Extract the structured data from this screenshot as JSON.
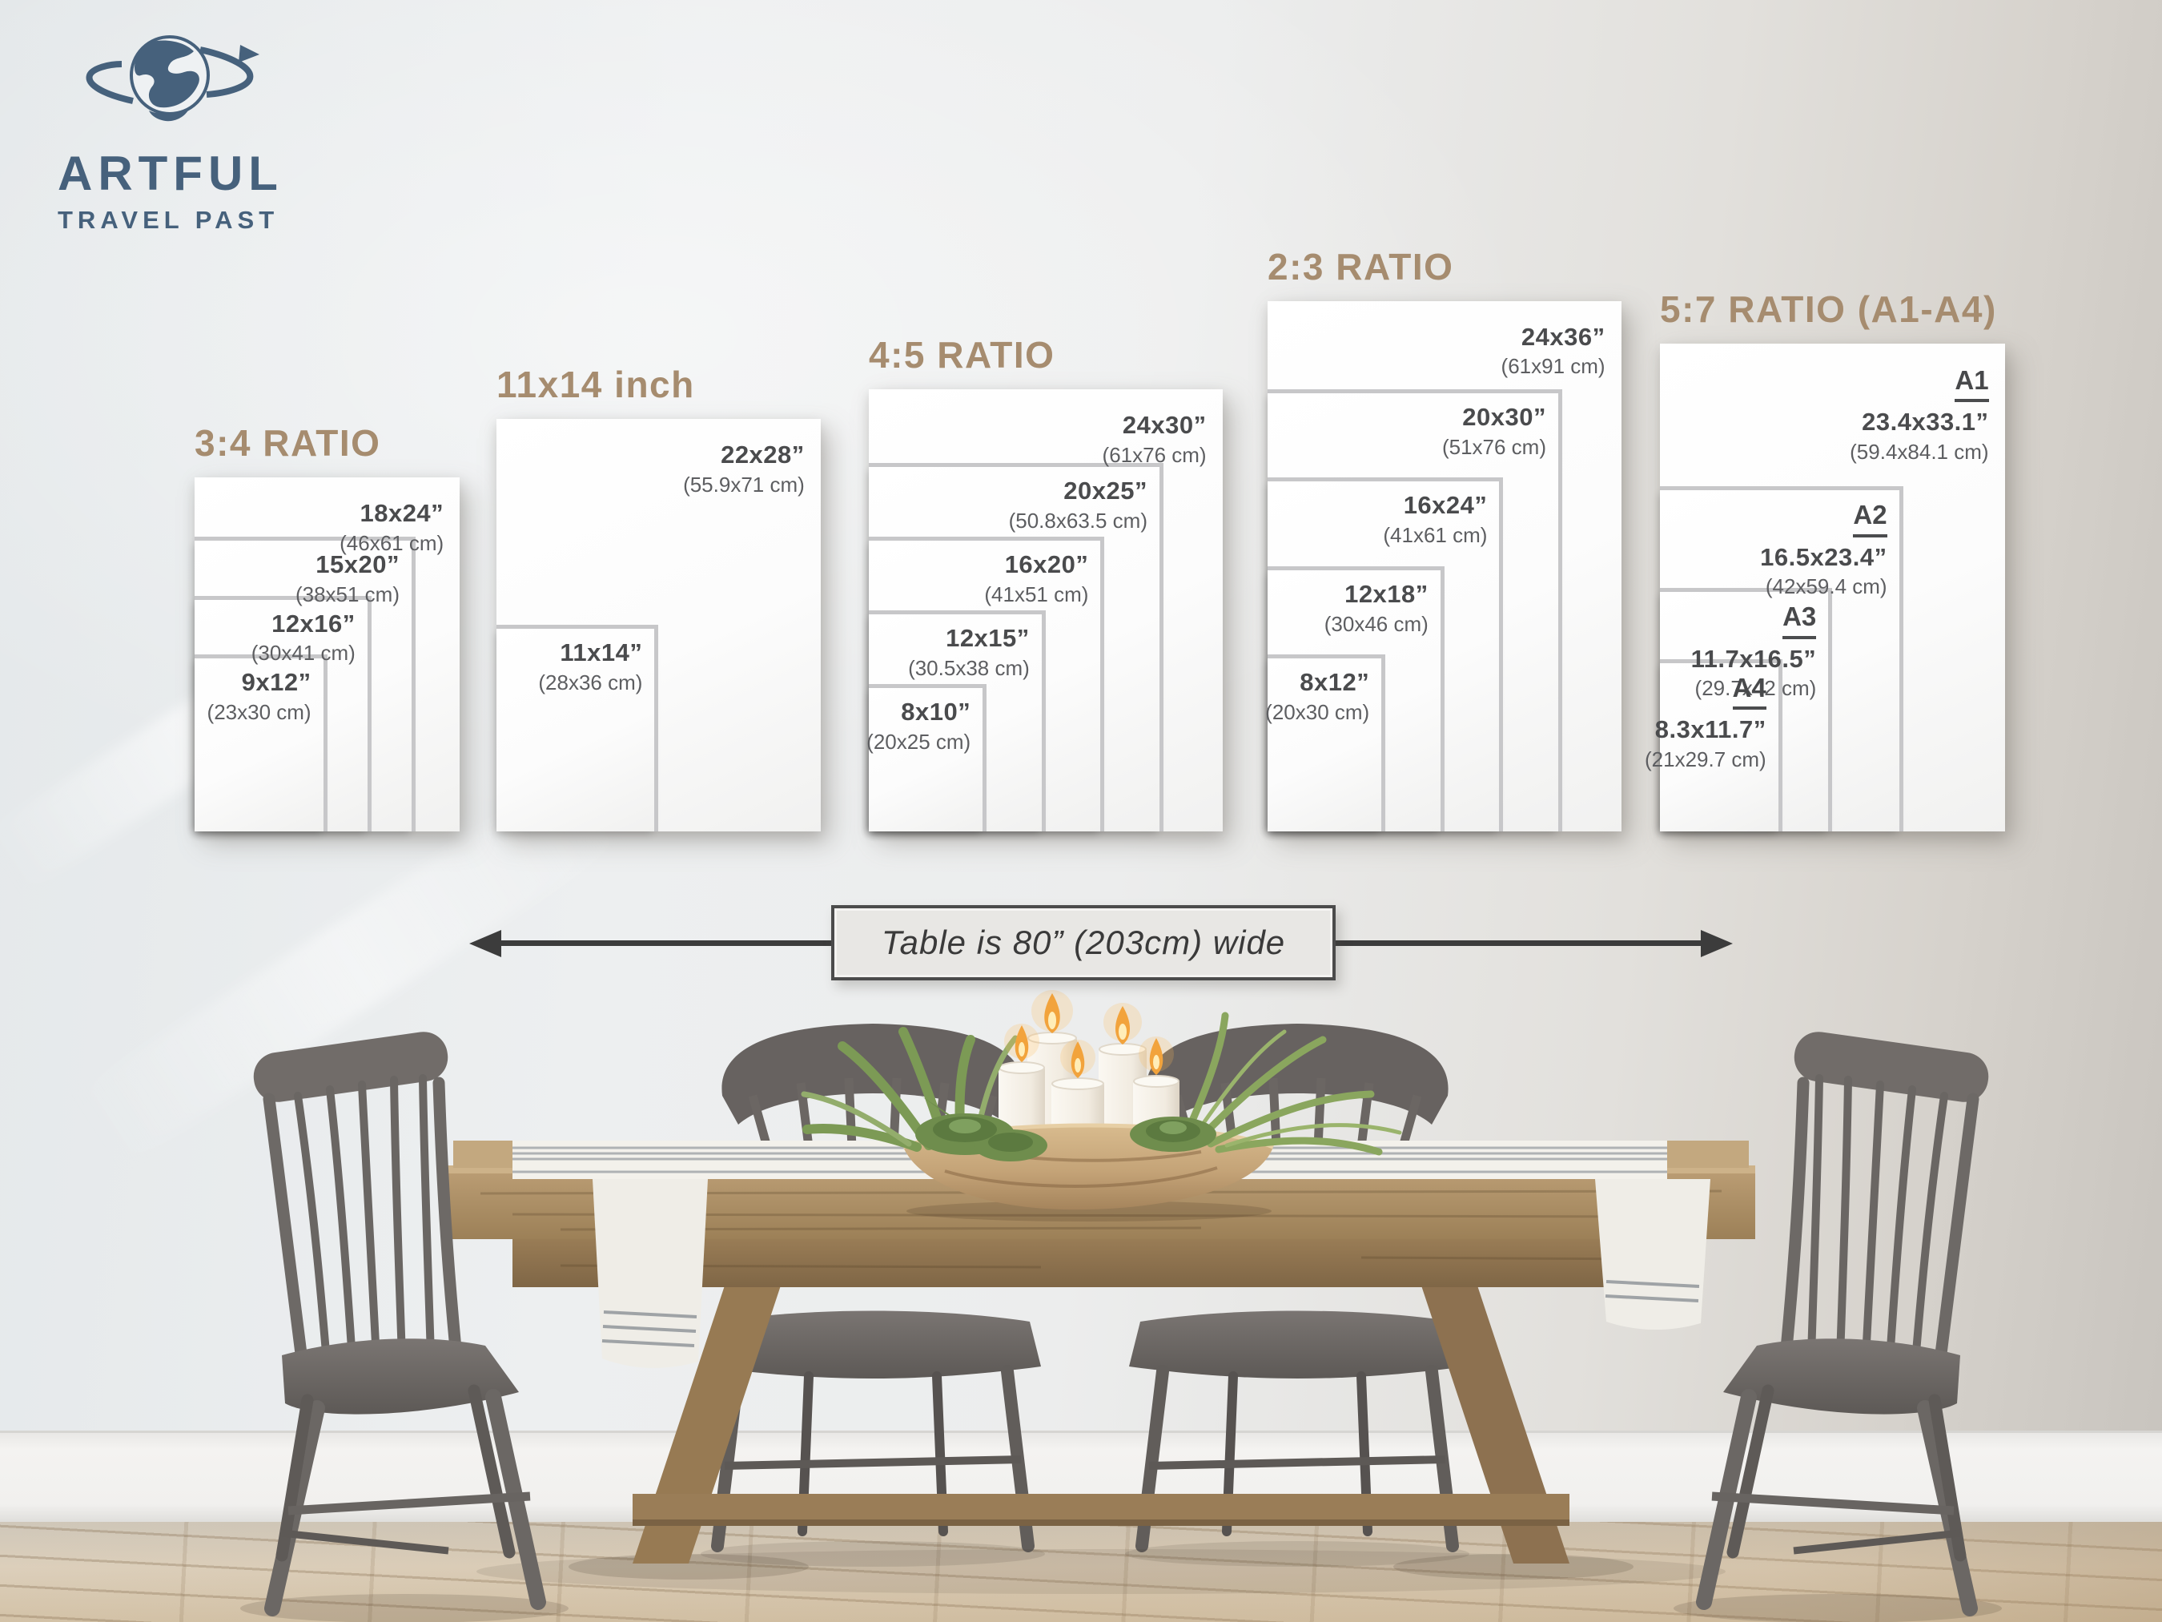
{
  "brand": {
    "line1": "ARTFUL",
    "line2": "TRAVEL PAST",
    "icon": "globe-orbit-icon",
    "color": "#46617c"
  },
  "size_chart": {
    "groups": [
      {
        "title": "3:4 RATIO",
        "sizes": [
          {
            "inches": "18x24”",
            "cm": "(46x61 cm)",
            "w_in": 18,
            "h_in": 24
          },
          {
            "inches": "15x20”",
            "cm": "(38x51 cm)",
            "w_in": 15,
            "h_in": 20
          },
          {
            "inches": "12x16”",
            "cm": "(30x41 cm)",
            "w_in": 12,
            "h_in": 16
          },
          {
            "inches": "9x12”",
            "cm": "(23x30 cm)",
            "w_in": 9,
            "h_in": 12
          }
        ]
      },
      {
        "title": "11x14 inch",
        "sizes": [
          {
            "inches": "22x28”",
            "cm": "(55.9x71 cm)",
            "w_in": 22,
            "h_in": 28
          },
          {
            "inches": "11x14”",
            "cm": "(28x36 cm)",
            "w_in": 11,
            "h_in": 14
          }
        ]
      },
      {
        "title": "4:5 RATIO",
        "sizes": [
          {
            "inches": "24x30”",
            "cm": "(61x76 cm)",
            "w_in": 24,
            "h_in": 30
          },
          {
            "inches": "20x25”",
            "cm": "(50.8x63.5 cm)",
            "w_in": 20,
            "h_in": 25
          },
          {
            "inches": "16x20”",
            "cm": "(41x51 cm)",
            "w_in": 16,
            "h_in": 20
          },
          {
            "inches": "12x15”",
            "cm": "(30.5x38 cm)",
            "w_in": 12,
            "h_in": 15
          },
          {
            "inches": "8x10”",
            "cm": "(20x25 cm)",
            "w_in": 8,
            "h_in": 10
          }
        ]
      },
      {
        "title": "2:3 RATIO",
        "sizes": [
          {
            "inches": "24x36”",
            "cm": "(61x91 cm)",
            "w_in": 24,
            "h_in": 36
          },
          {
            "inches": "20x30”",
            "cm": "(51x76 cm)",
            "w_in": 20,
            "h_in": 30
          },
          {
            "inches": "16x24”",
            "cm": "(41x61 cm)",
            "w_in": 16,
            "h_in": 24
          },
          {
            "inches": "12x18”",
            "cm": "(30x46 cm)",
            "w_in": 12,
            "h_in": 18
          },
          {
            "inches": "8x12”",
            "cm": "(20x30 cm)",
            "w_in": 8,
            "h_in": 12
          }
        ]
      },
      {
        "title": "5:7 RATIO (A1-A4)",
        "sizes": [
          {
            "name": "A1",
            "inches": "23.4x33.1”",
            "cm": "(59.4x84.1 cm)",
            "w_in": 23.4,
            "h_in": 33.1
          },
          {
            "name": "A2",
            "inches": "16.5x23.4”",
            "cm": "(42x59.4 cm)",
            "w_in": 16.5,
            "h_in": 23.4
          },
          {
            "name": "A3",
            "inches": "11.7x16.5”",
            "cm": "(29.7x42 cm)",
            "w_in": 11.7,
            "h_in": 16.5
          },
          {
            "name": "A4",
            "inches": "8.3x11.7”",
            "cm": "(21x29.7 cm)",
            "w_in": 8.3,
            "h_in": 11.7
          }
        ]
      }
    ]
  },
  "dimension_note": {
    "text": "Table is 80” (203cm) wide",
    "icon": "double-headed-arrow"
  },
  "scene": {
    "objects": [
      "dining-table",
      "table-runner",
      "wooden-bowl",
      "pillar-candles",
      "succulent-plants",
      "chair-back-left",
      "chair-back-right",
      "chair-front-left",
      "chair-front-right",
      "baseboard",
      "wood-floor"
    ],
    "candles_lit": 5
  },
  "colors": {
    "title_accent": "#a68c6f",
    "frame_border": "#c7c7c9",
    "label_text": "#4a4b4d",
    "cm_text": "#5d5e61",
    "logo_blue": "#46617c",
    "arrow_dark": "#3c3c3c",
    "note_bg": "#e8e7e4",
    "wood": "#ab8d64",
    "chair_gray": "#6e6a67"
  }
}
